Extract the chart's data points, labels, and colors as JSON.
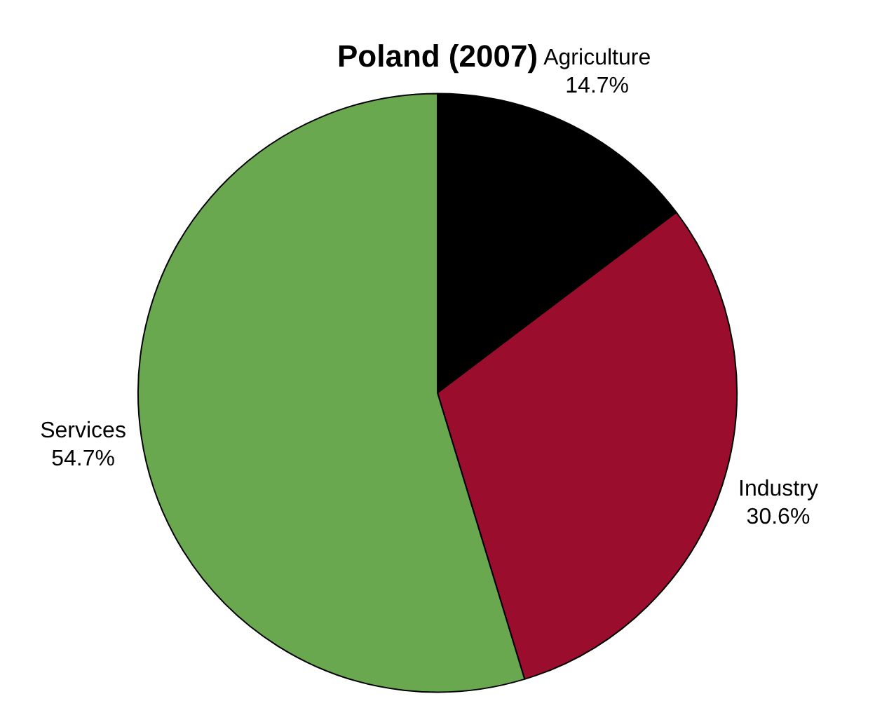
{
  "chart_data": {
    "type": "pie",
    "title": "Poland (2007)",
    "categories": [
      "Agriculture",
      "Industry",
      "Services"
    ],
    "values": [
      14.7,
      30.6,
      54.7
    ],
    "colors": [
      "#000000",
      "#9b0d2c",
      "#6aa84f"
    ],
    "value_labels": [
      "14.7%",
      "30.6%",
      "54.7%"
    ],
    "legend": false
  }
}
